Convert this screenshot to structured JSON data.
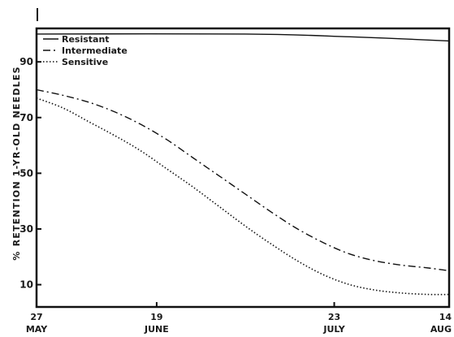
{
  "chart_data": {
    "type": "line",
    "ylabel": "% RETENTION 1-YR-OLD NEEDLES",
    "xlabel": "",
    "x_ticks": [
      {
        "day": 0,
        "day_label": "27",
        "month_label": "MAY"
      },
      {
        "day": 23,
        "day_label": "19",
        "month_label": "JUNE"
      },
      {
        "day": 57,
        "day_label": "23",
        "month_label": "JULY"
      },
      {
        "day": 79,
        "day_label": "14",
        "month_label": "AUG"
      }
    ],
    "y_ticks": [
      10,
      30,
      50,
      70,
      90
    ],
    "xlim": [
      0,
      79
    ],
    "ylim": [
      2,
      102
    ],
    "legend_position": "top-left",
    "series": [
      {
        "name": "Resistant",
        "style": "solid",
        "x": [
          0,
          40,
          60,
          79
        ],
        "y": [
          100,
          100,
          99,
          97.5
        ]
      },
      {
        "name": "Intermediate",
        "style": "dashdot",
        "x": [
          0,
          5,
          10,
          15,
          20,
          25,
          30,
          35,
          40,
          45,
          50,
          55,
          60,
          65,
          70,
          75,
          79
        ],
        "y": [
          80,
          78,
          75.5,
          72,
          67.5,
          62,
          55.5,
          49,
          42.5,
          36,
          30,
          25,
          21,
          18.5,
          17,
          16,
          15
        ]
      },
      {
        "name": "Sensitive",
        "style": "dotted",
        "x": [
          0,
          5,
          10,
          15,
          20,
          25,
          30,
          35,
          40,
          45,
          50,
          55,
          60,
          65,
          70,
          75,
          79
        ],
        "y": [
          77,
          73.5,
          68.5,
          63.5,
          58,
          51.5,
          45,
          38,
          31,
          24.5,
          18.5,
          13.5,
          10,
          8,
          7,
          6.5,
          6.5
        ]
      }
    ]
  },
  "colors": {
    "line": "#111111",
    "axis": "#111111",
    "background": "#ffffff"
  }
}
